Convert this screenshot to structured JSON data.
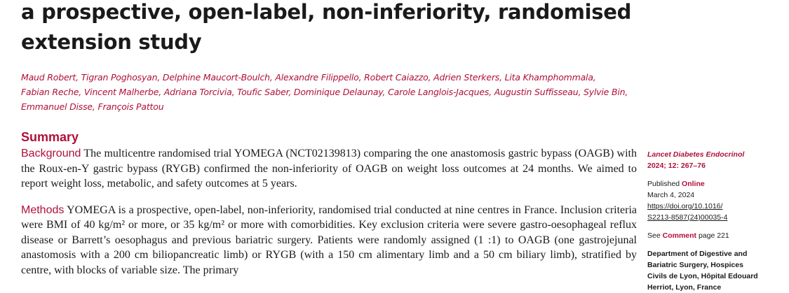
{
  "article": {
    "title_lines": [
      "a prospective, open-label, non-inferiority, randomised",
      "extension study"
    ],
    "author_lines": [
      "Maud Robert, Tigran Poghosyan, Delphine Maucort-Boulch, Alexandre Filippello, Robert Caiazzo, Adrien Sterkers, Lita Khamphommala,",
      "Fabian Reche, Vincent Malherbe, Adriana Torcivia, Toufic Saber, Dominique Delaunay, Carole Langlois-Jacques, Augustin Suffisseau, Sylvie Bin,",
      "Emmanuel Disse, François Pattou"
    ]
  },
  "summary": {
    "heading": "Summary",
    "background_label": "Background",
    "background_text": "The multicentre randomised trial YOMEGA (NCT02139813) comparing the one anastomosis gastric bypass (OAGB) with the Roux-en-Y gastric bypass (RYGB) confirmed the non-inferiority of OAGB on weight loss outcomes at 24 months. We aimed to report weight loss, metabolic, and safety outcomes at 5 years.",
    "methods_label": "Methods",
    "methods_text": "YOMEGA is a prospective, open-label, non-inferiority, randomised trial conducted at nine centres in France. Inclusion criteria were BMI of 40 kg/m² or more, or 35 kg/m² or more with comorbidities. Key exclusion criteria were severe gastro-oesophageal reflux disease or Barrett’s oesophagus and previous bariatric surgery. Patients were randomly assigned (1 :1) to OAGB (one gastrojejunal anastomosis with a 200 cm biliopancreatic limb) or RYGB (with a 150 cm alimentary limb and a 50 cm biliary limb), stratified by centre, with blocks of variable size. The primary"
  },
  "sidebar": {
    "journal": "Lancet Diabetes Endocrinol",
    "journal_ref": "2024; 12: 267–76",
    "published_prefix": "Published ",
    "published_online": "Online",
    "published_date": "March 4, 2024",
    "doi_line1": "https://doi.org/10.1016/",
    "doi_line2": "S2213-8587(24)00035-4",
    "see_prefix": "See ",
    "see_link": "Comment",
    "see_suffix": " page 221",
    "dept_line1": "Department of Digestive and",
    "dept_line2": "Bariatric Surgery, Hospices",
    "dept_line3": "Civils de Lyon, Hôpital Edouard",
    "dept_line4": "Herriot, Lyon, France"
  },
  "colors": {
    "accent": "#b0103a",
    "text": "#1a1a1a"
  }
}
